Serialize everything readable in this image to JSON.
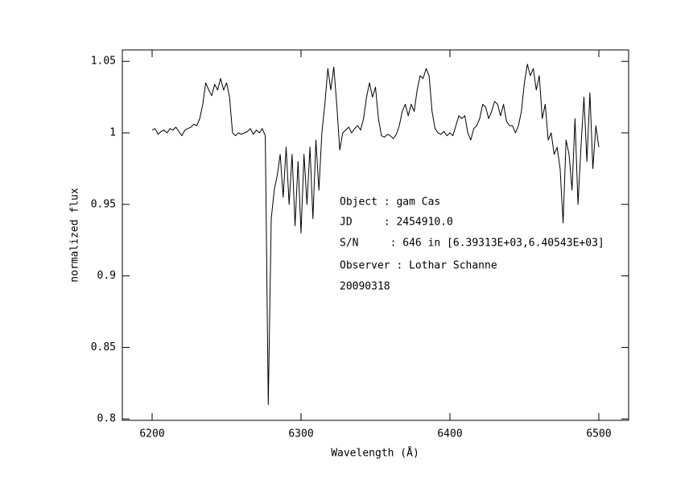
{
  "chart_data": {
    "type": "line",
    "x_label": "Wavelength (Å)",
    "y_label": "normalized flux",
    "annotations": [
      "Object : gam Cas",
      "JD     : 2454910.0",
      "S/N     : 646 in [6.39313E+03,6.40543E+03]",
      "Observer : Lothar Schanne",
      "20090318"
    ],
    "xlim": [
      6180,
      6520
    ],
    "ylim": [
      0.799,
      1.058
    ],
    "xticks": [
      6200,
      6300,
      6400,
      6500
    ],
    "yticks": [
      0.8,
      0.85,
      0.9,
      0.95,
      1,
      1.05
    ],
    "color": "#000000",
    "x": [
      6200,
      6202,
      6204,
      6206,
      6208,
      6210,
      6212,
      6214,
      6216,
      6218,
      6220,
      6222,
      6224,
      6226,
      6228,
      6230,
      6232,
      6234,
      6236,
      6238,
      6240,
      6242,
      6244,
      6246,
      6248,
      6250,
      6252,
      6254,
      6256,
      6258,
      6260,
      6262,
      6264,
      6266,
      6268,
      6270,
      6272,
      6274,
      6276,
      6278,
      6280,
      6282,
      6284,
      6286,
      6288,
      6290,
      6292,
      6294,
      6296,
      6298,
      6300,
      6302,
      6304,
      6306,
      6308,
      6310,
      6312,
      6314,
      6316,
      6318,
      6320,
      6322,
      6324,
      6326,
      6328,
      6330,
      6332,
      6334,
      6336,
      6338,
      6340,
      6342,
      6344,
      6346,
      6348,
      6350,
      6352,
      6354,
      6356,
      6358,
      6360,
      6362,
      6364,
      6366,
      6368,
      6370,
      6372,
      6374,
      6376,
      6378,
      6380,
      6382,
      6384,
      6386,
      6388,
      6390,
      6392,
      6394,
      6396,
      6398,
      6400,
      6402,
      6404,
      6406,
      6408,
      6410,
      6412,
      6414,
      6416,
      6418,
      6420,
      6422,
      6424,
      6426,
      6428,
      6430,
      6432,
      6434,
      6436,
      6438,
      6440,
      6442,
      6444,
      6446,
      6448,
      6450,
      6452,
      6454,
      6456,
      6458,
      6460,
      6462,
      6464,
      6466,
      6468,
      6470,
      6472,
      6474,
      6476,
      6478,
      6480,
      6482,
      6484,
      6486,
      6488,
      6490,
      6492,
      6494,
      6496,
      6498,
      6500
    ],
    "values": [
      1.002,
      1.003,
      0.999,
      1.001,
      1.002,
      1.0,
      1.003,
      1.002,
      1.004,
      1.001,
      0.998,
      1.002,
      1.003,
      1.004,
      1.006,
      1.005,
      1.01,
      1.02,
      1.035,
      1.03,
      1.026,
      1.034,
      1.03,
      1.038,
      1.03,
      1.035,
      1.025,
      1.0,
      0.998,
      1.0,
      0.999,
      1.0,
      1.001,
      1.003,
      0.999,
      1.002,
      1.0,
      1.003,
      0.998,
      0.81,
      0.94,
      0.96,
      0.97,
      0.985,
      0.955,
      0.99,
      0.95,
      0.985,
      0.935,
      0.98,
      0.93,
      0.985,
      0.95,
      0.99,
      0.94,
      0.995,
      0.96,
      1.0,
      1.02,
      1.045,
      1.03,
      1.046,
      1.02,
      0.988,
      1.0,
      1.002,
      1.004,
      1.0,
      1.003,
      1.005,
      1.002,
      1.01,
      1.025,
      1.035,
      1.025,
      1.032,
      1.01,
      0.998,
      0.997,
      0.999,
      0.998,
      0.996,
      0.999,
      1.005,
      1.015,
      1.02,
      1.012,
      1.02,
      1.015,
      1.03,
      1.04,
      1.038,
      1.045,
      1.04,
      1.015,
      1.003,
      1.0,
      0.999,
      1.001,
      0.998,
      1.0,
      0.998,
      1.005,
      1.012,
      1.01,
      1.012,
      1.0,
      0.995,
      1.003,
      1.005,
      1.01,
      1.02,
      1.018,
      1.01,
      1.015,
      1.022,
      1.02,
      1.012,
      1.02,
      1.008,
      1.005,
      1.005,
      1.0,
      1.005,
      1.015,
      1.035,
      1.048,
      1.04,
      1.045,
      1.03,
      1.04,
      1.01,
      1.02,
      0.995,
      1.0,
      0.985,
      0.99,
      0.975,
      0.937,
      0.995,
      0.985,
      0.96,
      1.01,
      0.95,
      0.99,
      1.025,
      0.98,
      1.028,
      0.975,
      1.005,
      0.99
    ]
  }
}
